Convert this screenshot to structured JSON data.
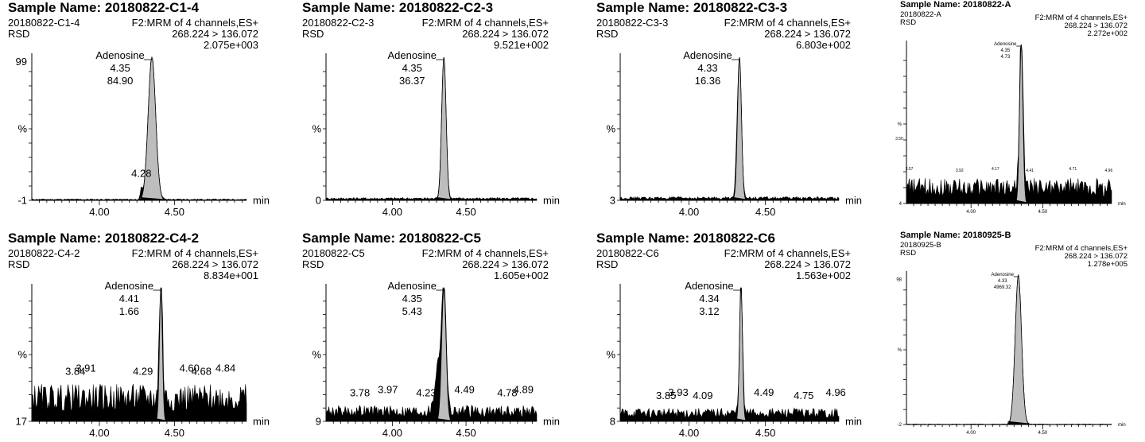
{
  "chart_data": [
    {
      "type": "line",
      "sample_name": "Sample Name: 20180822-C1-4",
      "sample_id": "20180822-C1-4",
      "rsd": "RSD",
      "channel": "F2:MRM of 4 channels,ES+",
      "transition": "268.224 > 136.072",
      "intensity": "2.075e+003",
      "compound": "Adenosine",
      "rt_label": "4.35",
      "area_label": "84.90",
      "y_ticks": [
        "99",
        "%",
        "-1"
      ],
      "x_ticks": [
        "4.00",
        "4.50"
      ],
      "x_unit": "min",
      "xlim": [
        3.55,
        4.98
      ],
      "noise": 0.01,
      "peaks": [
        {
          "rt": 4.35,
          "height": 1.0,
          "width": 0.025
        },
        {
          "rt": 4.28,
          "height": 0.07,
          "width": 0.006
        }
      ],
      "minor_labels": [
        {
          "text": "4.28",
          "rt": 4.28
        }
      ]
    },
    {
      "type": "line",
      "sample_name": "Sample Name: 20180822-C2-3",
      "sample_id": "20180822-C2-3",
      "rsd": "RSD",
      "channel": "F2:MRM of 4 channels,ES+",
      "transition": "268.224 > 136.072",
      "intensity": "9.521e+002",
      "compound": "Adenosine",
      "rt_label": "4.35",
      "area_label": "36.37",
      "y_ticks": [
        "",
        "%",
        "0"
      ],
      "x_ticks": [
        "4.00",
        "4.50"
      ],
      "x_unit": "min",
      "xlim": [
        3.55,
        4.98
      ],
      "noise": 0.02,
      "peaks": [
        {
          "rt": 4.35,
          "height": 1.0,
          "width": 0.015
        }
      ],
      "minor_labels": []
    },
    {
      "type": "line",
      "sample_name": "Sample Name: 20180822-C3-3",
      "sample_id": "20180822-C3-3",
      "rsd": "RSD",
      "channel": "F2:MRM of 4 channels,ES+",
      "transition": "268.224 > 136.072",
      "intensity": "6.803e+002",
      "compound": "Adenosine",
      "rt_label": "4.33",
      "area_label": "16.36",
      "y_ticks": [
        "",
        "%",
        "3"
      ],
      "x_ticks": [
        "4.00",
        "4.50"
      ],
      "x_unit": "min",
      "xlim": [
        3.55,
        4.98
      ],
      "noise": 0.025,
      "peaks": [
        {
          "rt": 4.33,
          "height": 1.0,
          "width": 0.013
        },
        {
          "rt": 4.31,
          "height": 0.12,
          "width": 0.008
        }
      ],
      "minor_labels": []
    },
    {
      "type": "line",
      "sample_name": "Sample Name: 20180822-A",
      "sample_id": "20180822-A",
      "rsd": "RSD",
      "channel": "F2:MRM of 4 channels,ES+",
      "transition": "268.224 > 136.072",
      "intensity": "2.272e+002",
      "compound": "Adenosine",
      "rt_label": "4.35",
      "area_label": "4.73",
      "y_ticks": [
        "",
        "%",
        "4"
      ],
      "x_ticks": [
        "4.00",
        "4.50"
      ],
      "x_unit": "min",
      "xlim": [
        3.55,
        4.98
      ],
      "noise": 0.16,
      "peaks": [
        {
          "rt": 4.35,
          "height": 1.0,
          "width": 0.012
        },
        {
          "rt": 3.5,
          "height": 0.2,
          "width": 0.01
        }
      ],
      "minor_labels": [
        {
          "text": "3.50",
          "rt": 3.5
        },
        {
          "text": "3.57",
          "rt": 3.57
        },
        {
          "text": "3.92",
          "rt": 3.92
        },
        {
          "text": "4.17",
          "rt": 4.17
        },
        {
          "text": "4.41",
          "rt": 4.41
        },
        {
          "text": "4.71",
          "rt": 4.71
        },
        {
          "text": "4.96",
          "rt": 4.96
        }
      ]
    },
    {
      "type": "line",
      "sample_name": "Sample Name: 20180822-C4-2",
      "sample_id": "20180822-C4-2",
      "rsd": "RSD",
      "channel": "F2:MRM of 4 channels,ES+",
      "transition": "268.224 > 136.072",
      "intensity": "8.834e+001",
      "compound": "Adenosine",
      "rt_label": "4.41",
      "area_label": "1.66",
      "y_ticks": [
        "",
        "%",
        "17"
      ],
      "x_ticks": [
        "4.00",
        "4.50"
      ],
      "x_unit": "min",
      "xlim": [
        3.55,
        4.98
      ],
      "noise": 0.28,
      "peaks": [
        {
          "rt": 4.41,
          "height": 1.0,
          "width": 0.01
        }
      ],
      "minor_labels": [
        {
          "text": "3.84",
          "rt": 3.84
        },
        {
          "text": "3.91",
          "rt": 3.91
        },
        {
          "text": "4.29",
          "rt": 4.29
        },
        {
          "text": "4.60",
          "rt": 4.6
        },
        {
          "text": "4.68",
          "rt": 4.68
        },
        {
          "text": "4.84",
          "rt": 4.84
        }
      ]
    },
    {
      "type": "line",
      "sample_name": "Sample Name: 20180822-C5",
      "sample_id": "20180822-C5",
      "rsd": "RSD",
      "channel": "F2:MRM of 4 channels,ES+",
      "transition": "268.224 > 136.072",
      "intensity": "1.605e+002",
      "compound": "Adenosine",
      "rt_label": "4.35",
      "area_label": "5.43",
      "y_ticks": [
        "",
        "%",
        "9"
      ],
      "x_ticks": [
        "4.00",
        "4.50"
      ],
      "x_unit": "min",
      "xlim": [
        3.55,
        4.98
      ],
      "noise": 0.12,
      "peaks": [
        {
          "rt": 4.35,
          "height": 1.0,
          "width": 0.015
        },
        {
          "rt": 4.31,
          "height": 0.35,
          "width": 0.02
        }
      ],
      "minor_labels": [
        {
          "text": "3.78",
          "rt": 3.78
        },
        {
          "text": "3.97",
          "rt": 3.97
        },
        {
          "text": "4.23",
          "rt": 4.23
        },
        {
          "text": "4.49",
          "rt": 4.49
        },
        {
          "text": "4.78",
          "rt": 4.78
        },
        {
          "text": "4.89",
          "rt": 4.89
        }
      ]
    },
    {
      "type": "line",
      "sample_name": "Sample Name: 20180822-C6",
      "sample_id": "20180822-C6",
      "rsd": "RSD",
      "channel": "F2:MRM of 4 channels,ES+",
      "transition": "268.224 > 136.072",
      "intensity": "1.563e+002",
      "compound": "Adenosine",
      "rt_label": "4.34",
      "area_label": "3.12",
      "y_ticks": [
        "",
        "%",
        "8"
      ],
      "x_ticks": [
        "4.00",
        "4.50"
      ],
      "x_unit": "min",
      "xlim": [
        3.55,
        4.98
      ],
      "noise": 0.1,
      "peaks": [
        {
          "rt": 4.34,
          "height": 1.0,
          "width": 0.01
        }
      ],
      "minor_labels": [
        {
          "text": "3.85",
          "rt": 3.85
        },
        {
          "text": "3.93",
          "rt": 3.93
        },
        {
          "text": "4.09",
          "rt": 4.09
        },
        {
          "text": "4.49",
          "rt": 4.49
        },
        {
          "text": "4.75",
          "rt": 4.75
        },
        {
          "text": "4.96",
          "rt": 4.96
        }
      ]
    },
    {
      "type": "line",
      "sample_name": "Sample Name: 20180925-B",
      "sample_id": "20180925-B",
      "rsd": "RSD",
      "channel": "F2:MRM of 4 channels,ES+",
      "transition": "268.224 > 136.072",
      "intensity": "1.278e+005",
      "compound": "Adenosine",
      "rt_label": "4.33",
      "area_label": "4969.32",
      "y_ticks": [
        "98",
        "%",
        "-2"
      ],
      "x_ticks": [
        "4.00",
        "4.50"
      ],
      "x_unit": "min",
      "xlim": [
        3.55,
        4.98
      ],
      "noise": 0.004,
      "peaks": [
        {
          "rt": 4.33,
          "height": 1.0,
          "width": 0.022
        }
      ],
      "minor_labels": []
    }
  ]
}
